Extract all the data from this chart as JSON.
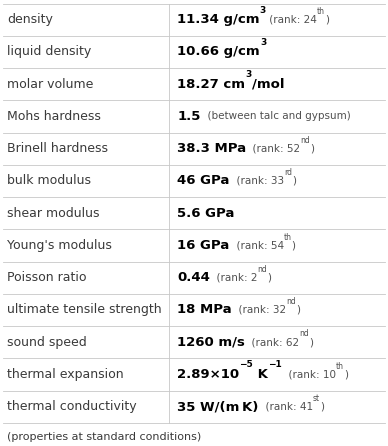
{
  "rows": [
    {
      "property": "density",
      "value": "11.34 g/cm",
      "vsup": "3",
      "extra": " (rank: 24",
      "esup": "th",
      "eend": ")"
    },
    {
      "property": "liquid density",
      "value": "10.66 g/cm",
      "vsup": "3",
      "extra": "",
      "esup": "",
      "eend": ""
    },
    {
      "property": "molar volume",
      "value": "18.27 cm",
      "vsup": "3",
      "extra": "/mol",
      "esup": "",
      "eend": ""
    },
    {
      "property": "Mohs hardness",
      "value": "1.5",
      "vsup": "",
      "extra": "  (between talc and gypsum)",
      "esup": "",
      "eend": ""
    },
    {
      "property": "Brinell hardness",
      "value": "38.3 MPa",
      "vsup": "",
      "extra": "  (rank: 52",
      "esup": "nd",
      "eend": ")"
    },
    {
      "property": "bulk modulus",
      "value": "46 GPa",
      "vsup": "",
      "extra": "  (rank: 33",
      "esup": "rd",
      "eend": ")"
    },
    {
      "property": "shear modulus",
      "value": "5.6 GPa",
      "vsup": "",
      "extra": "",
      "esup": "",
      "eend": ""
    },
    {
      "property": "Young's modulus",
      "value": "16 GPa",
      "vsup": "",
      "extra": "  (rank: 54",
      "esup": "th",
      "eend": ")"
    },
    {
      "property": "Poisson ratio",
      "value": "0.44",
      "vsup": "",
      "extra": "  (rank: 2",
      "esup": "nd",
      "eend": ")"
    },
    {
      "property": "ultimate tensile strength",
      "value": "18 MPa",
      "vsup": "",
      "extra": "  (rank: 32",
      "esup": "nd",
      "eend": ")"
    },
    {
      "property": "sound speed",
      "value": "1260 m/s",
      "vsup": "",
      "extra": "  (rank: 62",
      "esup": "nd",
      "eend": ")"
    },
    {
      "property": "thermal expansion",
      "value": "2.89×10",
      "vsup": "−5",
      "extra": " K",
      "esup": "−1",
      "eend": "  (rank: 10",
      "esup2": "th",
      "eend2": ")"
    },
    {
      "property": "thermal conductivity",
      "value": "35 W/(m K)",
      "vsup": "",
      "extra": "  (rank: 41",
      "esup": "st",
      "eend": ")"
    }
  ],
  "footer": "(properties at standard conditions)",
  "bg_color": "#ffffff",
  "line_color": "#c8c8c8",
  "text_color": "#000000",
  "prop_color": "#3a3a3a",
  "rank_color": "#505050",
  "col_split": 0.435,
  "fig_w": 3.88,
  "fig_h": 4.46,
  "dpi": 100,
  "prop_fontsize": 9.0,
  "main_fontsize": 9.5,
  "rank_fontsize": 7.5,
  "sup_fontsize": 6.5,
  "footer_fontsize": 8.0
}
